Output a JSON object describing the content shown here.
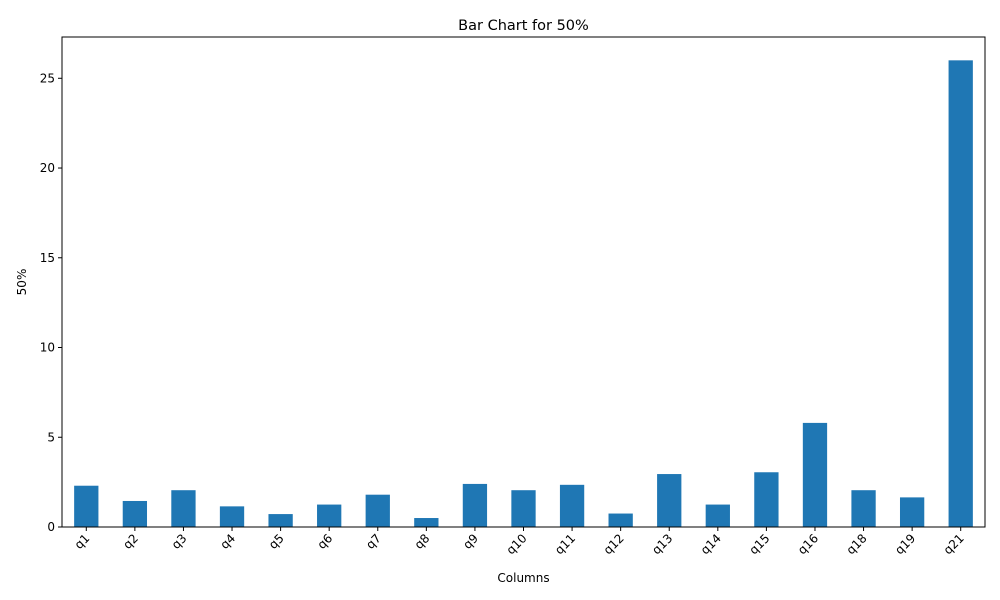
{
  "chart_data": {
    "type": "bar",
    "title": "Bar Chart for 50%",
    "xlabel": "Columns",
    "ylabel": "50%",
    "categories": [
      "q1",
      "q2",
      "q3",
      "q4",
      "q5",
      "q6",
      "q7",
      "q8",
      "q9",
      "q10",
      "q11",
      "q12",
      "q13",
      "q14",
      "q15",
      "q16",
      "q18",
      "q19",
      "q21"
    ],
    "values": [
      2.3,
      1.45,
      2.05,
      1.15,
      0.72,
      1.25,
      1.8,
      0.5,
      2.4,
      2.05,
      2.35,
      0.75,
      2.95,
      1.25,
      3.05,
      5.8,
      2.05,
      1.65,
      26.0
    ],
    "ylim": [
      0,
      27.3
    ],
    "yticks": [
      0,
      5,
      10,
      15,
      20,
      25
    ],
    "bar_color": "#1f77b4",
    "grid": false,
    "legend": "none"
  }
}
